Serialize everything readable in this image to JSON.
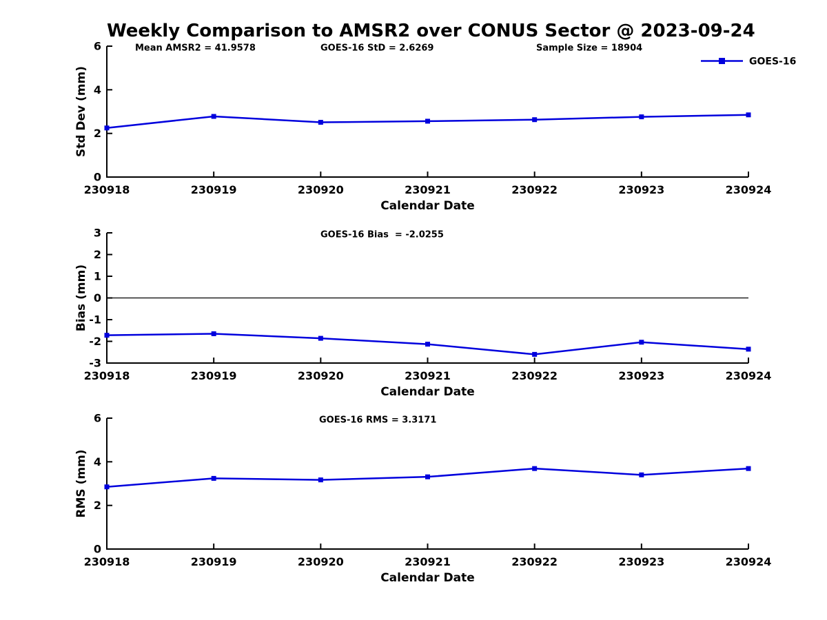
{
  "title": "Weekly Comparison to AMSR2 over CONUS Sector @ 2023-09-24",
  "legend": {
    "label": "GOES-16"
  },
  "colors": {
    "line": "#0000dd",
    "axis": "#000000",
    "zero_line": "#000000",
    "background": "#ffffff"
  },
  "chart_data": [
    {
      "type": "line",
      "name": "std-dev",
      "ylabel": "Std Dev (mm)",
      "xlabel": "Calendar Date",
      "categories": [
        "230918",
        "230919",
        "230920",
        "230921",
        "230922",
        "230923",
        "230924"
      ],
      "series": [
        {
          "name": "GOES-16",
          "marker": "square",
          "values": [
            2.25,
            2.78,
            2.51,
            2.56,
            2.63,
            2.76,
            2.85
          ]
        }
      ],
      "ylim": [
        0,
        6
      ],
      "yticks": [
        0,
        2,
        4,
        6
      ],
      "annotations": [
        "Mean AMSR2 = 41.9578",
        "GOES-16 StD = 2.6269",
        "Sample Size = 18904"
      ],
      "zero_line": false,
      "show_legend": true,
      "legend_position": "top-right",
      "grid": false
    },
    {
      "type": "line",
      "name": "bias",
      "ylabel": "Bias (mm)",
      "xlabel": "Calendar Date",
      "categories": [
        "230918",
        "230919",
        "230920",
        "230921",
        "230922",
        "230923",
        "230924"
      ],
      "series": [
        {
          "name": "GOES-16",
          "marker": "square",
          "values": [
            -1.72,
            -1.65,
            -1.86,
            -2.13,
            -2.6,
            -2.04,
            -2.36
          ]
        }
      ],
      "ylim": [
        -3,
        3
      ],
      "yticks": [
        3,
        2,
        1,
        0,
        -1,
        -2,
        -3
      ],
      "annotations": [
        "GOES-16 Bias  = -2.0255"
      ],
      "zero_line": true,
      "show_legend": false,
      "grid": false
    },
    {
      "type": "line",
      "name": "rms",
      "ylabel": "RMS (mm)",
      "xlabel": "Calendar Date",
      "categories": [
        "230918",
        "230919",
        "230920",
        "230921",
        "230922",
        "230923",
        "230924"
      ],
      "series": [
        {
          "name": "GOES-16",
          "marker": "square",
          "values": [
            2.85,
            3.24,
            3.17,
            3.31,
            3.69,
            3.4,
            3.69
          ]
        }
      ],
      "ylim": [
        0,
        6
      ],
      "yticks": [
        0,
        2,
        4,
        6
      ],
      "annotations": [
        "GOES-16 RMS = 3.3171"
      ],
      "zero_line": false,
      "show_legend": false,
      "grid": false
    }
  ]
}
